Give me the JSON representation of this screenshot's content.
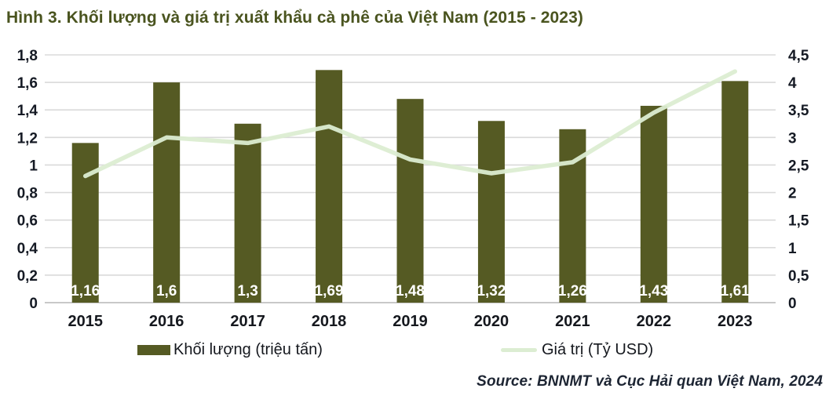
{
  "title": "Hình 3. Khối lượng và giá trị xuất khẩu cà phê của Việt Nam (2015 - 2023)",
  "source": "Source: BNNMT và Cục Hải quan Việt Nam, 2024",
  "chart_data": {
    "type": "combo",
    "categories": [
      "2015",
      "2016",
      "2017",
      "2018",
      "2019",
      "2020",
      "2021",
      "2022",
      "2023"
    ],
    "series": [
      {
        "name": "Khối lượng (triệu tấn)",
        "type": "bar",
        "axis": "left",
        "color": "#555a23",
        "values": [
          1.16,
          1.6,
          1.3,
          1.69,
          1.48,
          1.32,
          1.26,
          1.43,
          1.61
        ],
        "value_labels": [
          "1,16",
          "1,6",
          "1,3",
          "1,69",
          "1,48",
          "1,32",
          "1,26",
          "1,43",
          "1,61"
        ]
      },
      {
        "name": "Giá trị (Tỷ USD)",
        "type": "line",
        "axis": "right",
        "color": "#dcedd2",
        "values": [
          2.3,
          3.0,
          2.9,
          3.2,
          2.6,
          2.35,
          2.55,
          3.45,
          4.2
        ]
      }
    ],
    "left_axis": {
      "min": 0,
      "max": 1.8,
      "step": 0.2,
      "tick_labels": [
        "0",
        "0,2",
        "0,4",
        "0,6",
        "0,8",
        "1",
        "1,2",
        "1,4",
        "1,6",
        "1,8"
      ]
    },
    "right_axis": {
      "min": 0,
      "max": 4.5,
      "step": 0.5,
      "tick_labels": [
        "0",
        "0,5",
        "1",
        "1,5",
        "2",
        "2,5",
        "3",
        "3,5",
        "4",
        "4,5"
      ]
    },
    "grid": "horizontal",
    "legend_position": "bottom",
    "colors": {
      "title": "#4a541f",
      "axis_text": "#151a24",
      "category_text": "#15181e",
      "grid": "#dadada",
      "baseline": "#c8c8c8",
      "bar_label": "#ffffff"
    }
  }
}
